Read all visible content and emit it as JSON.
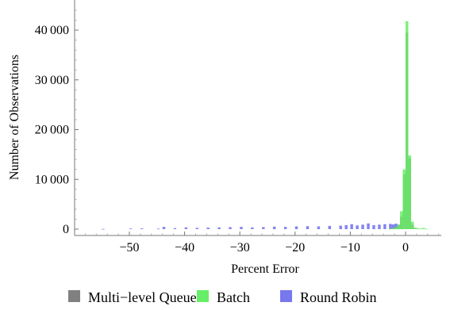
{
  "chart_data": {
    "type": "bar",
    "title": "",
    "xlabel": "Percent Error",
    "ylabel": "Number of Observations",
    "xlim": [
      -60,
      7
    ],
    "ylim": [
      -1200,
      46000
    ],
    "bin_width": 0.5,
    "x_ticks": [
      -50,
      -40,
      -30,
      -20,
      -10,
      0
    ],
    "x_tick_labels": [
      "−50",
      "−40",
      "−30",
      "−20",
      "−10",
      "0"
    ],
    "y_ticks": [
      0,
      10000,
      20000,
      30000,
      40000
    ],
    "y_tick_labels": [
      "0",
      "10 000",
      "20 000",
      "30 000",
      "40 000"
    ],
    "legend_position": "bottom",
    "grid": false,
    "series": [
      {
        "name": "Multi−level Queue",
        "color": "#808080",
        "x": [
          -3.0,
          -2.5,
          -2.0,
          -1.5,
          -1.0,
          -0.5,
          0.0,
          0.5,
          1.0,
          1.5
        ],
        "values": [
          150,
          220,
          350,
          700,
          2500,
          11000,
          39500,
          14200,
          900,
          200
        ]
      },
      {
        "name": "Batch",
        "color": "#66ee66",
        "x": [
          -3.0,
          -2.5,
          -2.0,
          -1.5,
          -1.0,
          -0.5,
          0.0,
          0.5,
          1.0,
          1.5,
          2.0,
          2.5,
          3.0,
          3.5
        ],
        "values": [
          100,
          180,
          380,
          900,
          3600,
          12000,
          41800,
          14800,
          1500,
          300,
          200,
          100,
          250,
          80
        ]
      },
      {
        "name": "Round Robin",
        "color": "#7777ee",
        "x": [
          -55,
          -50,
          -48,
          -45,
          -44,
          -42,
          -40,
          -38,
          -36,
          -34,
          -32,
          -30,
          -28,
          -26,
          -24,
          -22,
          -20,
          -18,
          -16,
          -14,
          -12,
          -11,
          -10,
          -9,
          -8,
          -7,
          -6,
          -5,
          -4,
          -3,
          -2.5,
          -2,
          -1.5,
          -1
        ],
        "values": [
          50,
          120,
          150,
          100,
          450,
          200,
          350,
          250,
          300,
          350,
          400,
          450,
          350,
          400,
          500,
          450,
          550,
          600,
          550,
          650,
          700,
          800,
          1000,
          750,
          900,
          1150,
          800,
          900,
          1000,
          1050,
          950,
          1100,
          900,
          600
        ]
      }
    ]
  }
}
